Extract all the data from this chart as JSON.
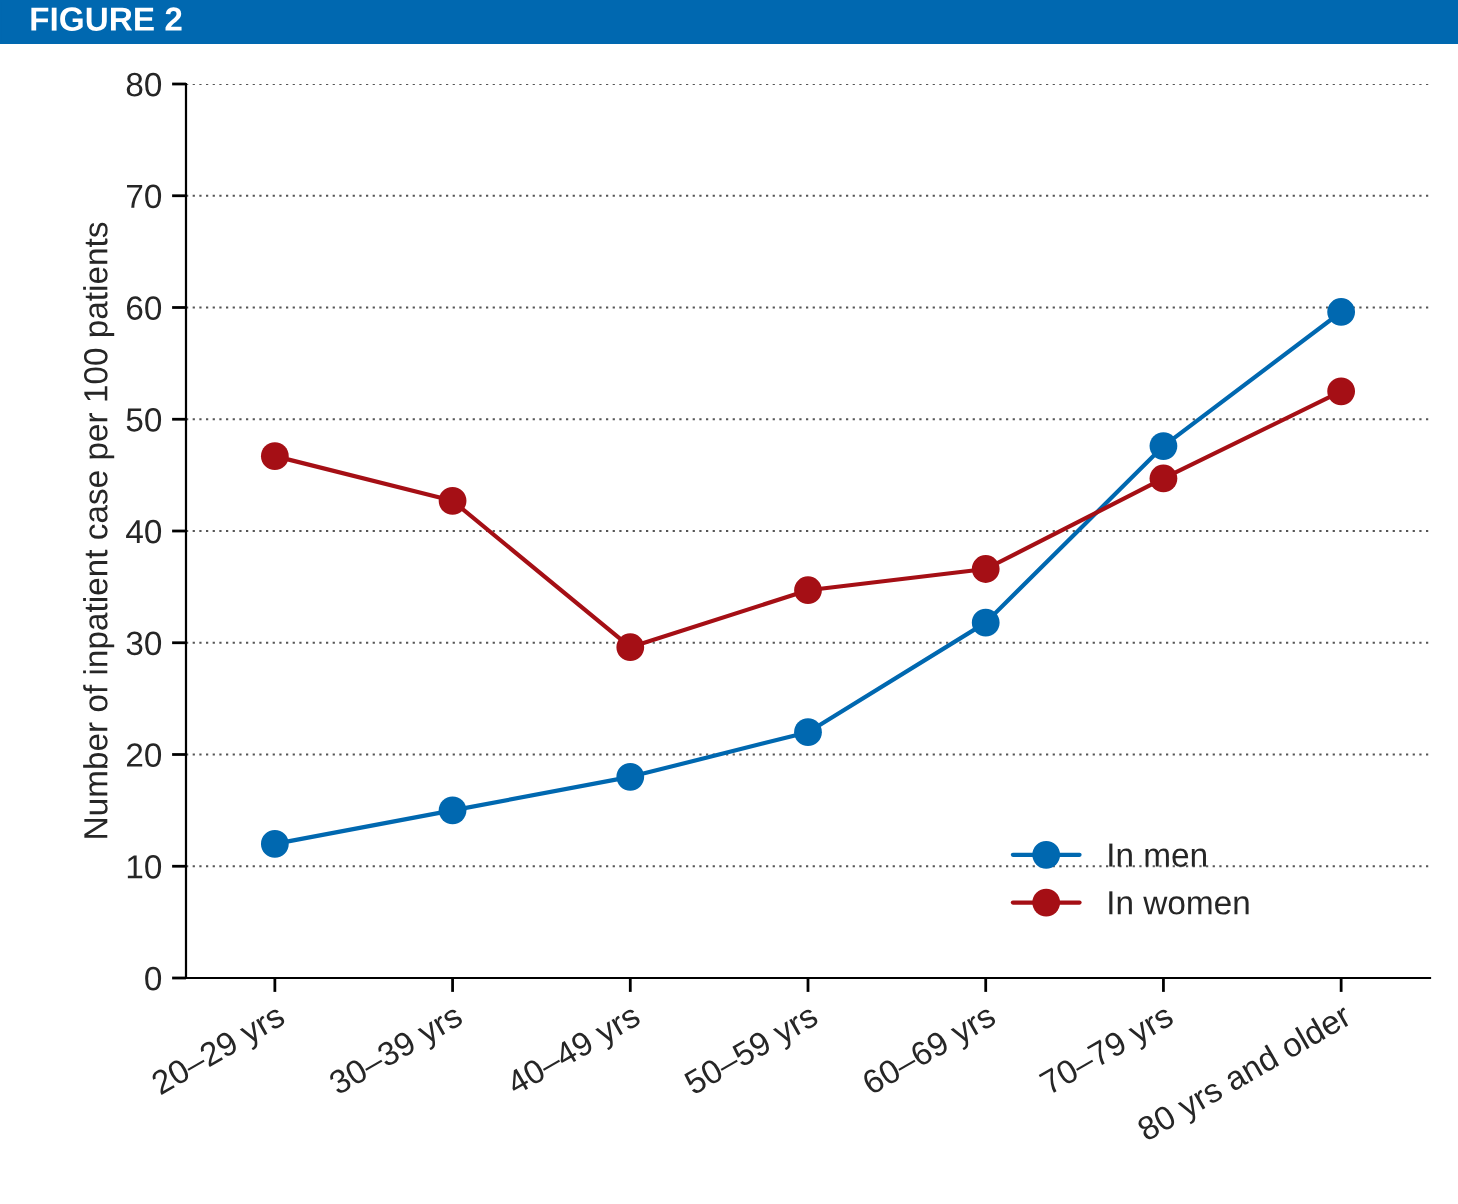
{
  "chart_data": {
    "type": "line",
    "title": "FIGURE 2",
    "ylabel": "Number of inpatient case per 100 patients",
    "categories": [
      "20–29 yrs",
      "30–39 yrs",
      "40–49 yrs",
      "50–59 yrs",
      "60–69 yrs",
      "70–79 yrs",
      "80 yrs and older"
    ],
    "series": [
      {
        "name": "In men",
        "color": "#0068b0",
        "values": [
          12,
          15,
          18,
          22,
          31.8,
          47.6,
          59.6
        ]
      },
      {
        "name": "In women",
        "color": "#a50f15",
        "values": [
          46.7,
          42.7,
          29.6,
          34.7,
          36.6,
          44.7,
          52.5
        ]
      }
    ],
    "ylim": [
      0,
      80
    ],
    "yticks": [
      0,
      10,
      20,
      30,
      40,
      50,
      60,
      70,
      80
    ],
    "grid": "y",
    "legend": "bottom right",
    "marker": "circle",
    "line_style": "solid"
  }
}
